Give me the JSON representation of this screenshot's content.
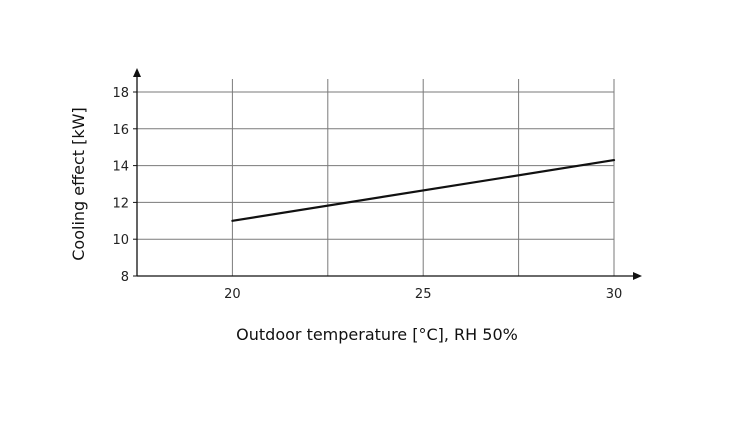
{
  "chart_data": {
    "type": "line",
    "title": "",
    "xlabel": "Outdoor temperature [°C], RH 50%",
    "ylabel": "Cooling effect [kW]",
    "xlim": [
      17.5,
      30
    ],
    "ylim": [
      8,
      18
    ],
    "x_ticks": [
      20,
      25,
      30
    ],
    "y_ticks": [
      8,
      10,
      12,
      14,
      16,
      18
    ],
    "x_grid": [
      20,
      22.5,
      25,
      27.5,
      30
    ],
    "grid": true,
    "series": [
      {
        "x": [
          20,
          30
        ],
        "y": [
          11.0,
          14.3
        ]
      }
    ]
  }
}
